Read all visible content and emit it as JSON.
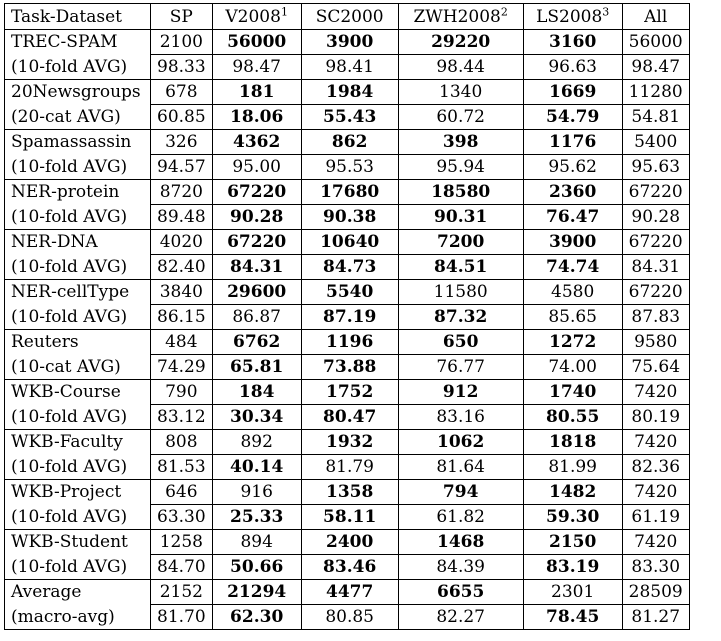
{
  "headers": [
    {
      "text": "Task-Dataset",
      "sup": ""
    },
    {
      "text": "SP",
      "sup": ""
    },
    {
      "text": "V2008",
      "sup": "1"
    },
    {
      "text": "SC2000",
      "sup": ""
    },
    {
      "text": "ZWH2008",
      "sup": "2"
    },
    {
      "text": "LS2008",
      "sup": "3"
    },
    {
      "text": "All",
      "sup": ""
    }
  ],
  "rows": [
    {
      "name": "TREC-SPAM",
      "sub": "(10-fold AVG)",
      "size": [
        "2100",
        "56000",
        "3900",
        "29220",
        "3160",
        "56000"
      ],
      "size_bold": [
        false,
        true,
        true,
        true,
        true,
        false
      ],
      "acc": [
        "98.33",
        "98.47",
        "98.41",
        "98.44",
        "96.63",
        "98.47"
      ],
      "acc_bold": [
        false,
        false,
        false,
        false,
        false,
        false
      ]
    },
    {
      "name": "20Newsgroups",
      "sub": "(20-cat AVG)",
      "size": [
        "678",
        "181",
        "1984",
        "1340",
        "1669",
        "11280"
      ],
      "size_bold": [
        false,
        true,
        true,
        false,
        true,
        false
      ],
      "acc": [
        "60.85",
        "18.06",
        "55.43",
        "60.72",
        "54.79",
        "54.81"
      ],
      "acc_bold": [
        false,
        true,
        true,
        false,
        true,
        false
      ]
    },
    {
      "name": "Spamassassin",
      "sub": "(10-fold AVG)",
      "size": [
        "326",
        "4362",
        "862",
        "398",
        "1176",
        "5400"
      ],
      "size_bold": [
        false,
        true,
        true,
        true,
        true,
        false
      ],
      "acc": [
        "94.57",
        "95.00",
        "95.53",
        "95.94",
        "95.62",
        "95.63"
      ],
      "acc_bold": [
        false,
        false,
        false,
        false,
        false,
        false
      ]
    },
    {
      "name": "NER-protein",
      "sub": "(10-fold AVG)",
      "size": [
        "8720",
        "67220",
        "17680",
        "18580",
        "2360",
        "67220"
      ],
      "size_bold": [
        false,
        true,
        true,
        true,
        true,
        false
      ],
      "acc": [
        "89.48",
        "90.28",
        "90.38",
        "90.31",
        "76.47",
        "90.28"
      ],
      "acc_bold": [
        false,
        true,
        true,
        true,
        true,
        false
      ]
    },
    {
      "name": "NER-DNA",
      "sub": "(10-fold AVG)",
      "size": [
        "4020",
        "67220",
        "10640",
        "7200",
        "3900",
        "67220"
      ],
      "size_bold": [
        false,
        true,
        true,
        true,
        true,
        false
      ],
      "acc": [
        "82.40",
        "84.31",
        "84.73",
        "84.51",
        "74.74",
        "84.31"
      ],
      "acc_bold": [
        false,
        true,
        true,
        true,
        true,
        false
      ]
    },
    {
      "name": "NER-cellType",
      "sub": "(10-fold AVG)",
      "size": [
        "3840",
        "29600",
        "5540",
        "11580",
        "4580",
        "67220"
      ],
      "size_bold": [
        false,
        true,
        true,
        false,
        false,
        false
      ],
      "acc": [
        "86.15",
        "86.87",
        "87.19",
        "87.32",
        "85.65",
        "87.83"
      ],
      "acc_bold": [
        false,
        false,
        true,
        true,
        false,
        false
      ]
    },
    {
      "name": "Reuters",
      "sub": "(10-cat AVG)",
      "size": [
        "484",
        "6762",
        "1196",
        "650",
        "1272",
        "9580"
      ],
      "size_bold": [
        false,
        true,
        true,
        true,
        true,
        false
      ],
      "acc": [
        "74.29",
        "65.81",
        "73.88",
        "76.77",
        "74.00",
        "75.64"
      ],
      "acc_bold": [
        false,
        true,
        true,
        false,
        false,
        false
      ]
    },
    {
      "name": "WKB-Course",
      "sub": "(10-fold AVG)",
      "size": [
        "790",
        "184",
        "1752",
        "912",
        "1740",
        "7420"
      ],
      "size_bold": [
        false,
        true,
        true,
        true,
        true,
        false
      ],
      "acc": [
        "83.12",
        "30.34",
        "80.47",
        "83.16",
        "80.55",
        "80.19"
      ],
      "acc_bold": [
        false,
        true,
        true,
        false,
        true,
        false
      ]
    },
    {
      "name": "WKB-Faculty",
      "sub": "(10-fold AVG)",
      "size": [
        "808",
        "892",
        "1932",
        "1062",
        "1818",
        "7420"
      ],
      "size_bold": [
        false,
        false,
        true,
        true,
        true,
        false
      ],
      "acc": [
        "81.53",
        "40.14",
        "81.79",
        "81.64",
        "81.99",
        "82.36"
      ],
      "acc_bold": [
        false,
        true,
        false,
        false,
        false,
        false
      ]
    },
    {
      "name": "WKB-Project",
      "sub": "(10-fold AVG)",
      "size": [
        "646",
        "916",
        "1358",
        "794",
        "1482",
        "7420"
      ],
      "size_bold": [
        false,
        false,
        true,
        true,
        true,
        false
      ],
      "acc": [
        "63.30",
        "25.33",
        "58.11",
        "61.82",
        "59.30",
        "61.19"
      ],
      "acc_bold": [
        false,
        true,
        true,
        false,
        true,
        false
      ]
    },
    {
      "name": "WKB-Student",
      "sub": "(10-fold AVG)",
      "size": [
        "1258",
        "894",
        "2400",
        "1468",
        "2150",
        "7420"
      ],
      "size_bold": [
        false,
        false,
        true,
        true,
        true,
        false
      ],
      "acc": [
        "84.70",
        "50.66",
        "83.46",
        "84.39",
        "83.19",
        "83.30"
      ],
      "acc_bold": [
        false,
        true,
        true,
        false,
        true,
        false
      ]
    },
    {
      "name": "Average",
      "sub": "(macro-avg)",
      "size": [
        "2152",
        "21294",
        "4477",
        "6655",
        "2301",
        "28509"
      ],
      "size_bold": [
        false,
        true,
        true,
        true,
        false,
        false
      ],
      "acc": [
        "81.70",
        "62.30",
        "80.85",
        "82.27",
        "78.45",
        "81.27"
      ],
      "acc_bold": [
        false,
        true,
        false,
        false,
        true,
        false
      ]
    }
  ]
}
